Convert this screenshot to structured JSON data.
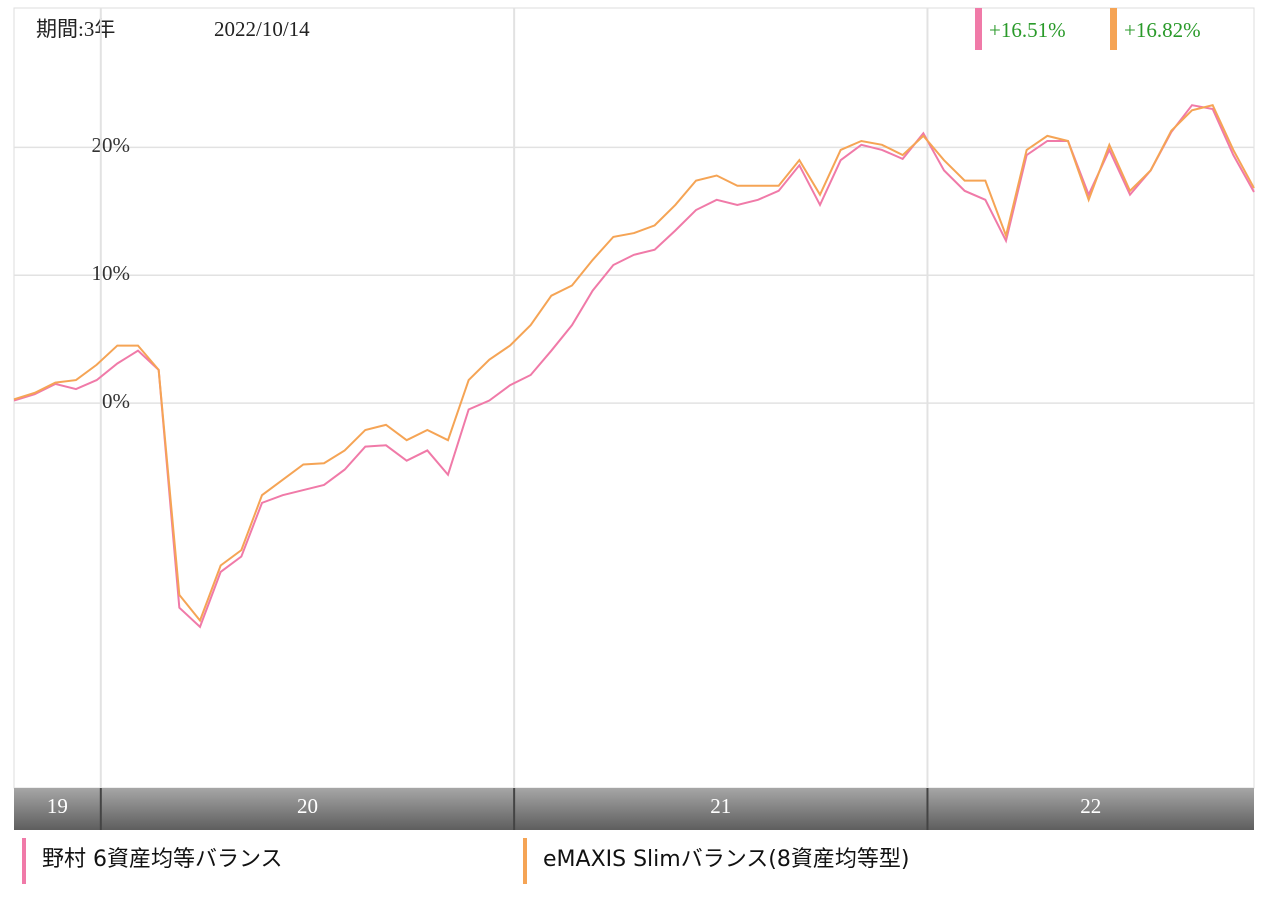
{
  "chart_data": {
    "type": "line",
    "period_label": "期間:3年",
    "date_label": "2022/10/14",
    "x": [
      2019.79,
      2019.84,
      2019.89,
      2019.94,
      2019.99,
      2020.04,
      2020.09,
      2020.14,
      2020.19,
      2020.24,
      2020.29,
      2020.34,
      2020.39,
      2020.44,
      2020.49,
      2020.54,
      2020.59,
      2020.64,
      2020.69,
      2020.74,
      2020.79,
      2020.84,
      2020.89,
      2020.94,
      2020.99,
      2021.04,
      2021.09,
      2021.14,
      2021.19,
      2021.24,
      2021.29,
      2021.34,
      2021.39,
      2021.44,
      2021.49,
      2021.54,
      2021.59,
      2021.64,
      2021.69,
      2021.74,
      2021.79,
      2021.84,
      2021.89,
      2021.94,
      2021.99,
      2022.04,
      2022.09,
      2022.14,
      2022.19,
      2022.24,
      2022.29,
      2022.34,
      2022.39,
      2022.44,
      2022.49,
      2022.54,
      2022.59,
      2022.64,
      2022.69,
      2022.74,
      2022.79
    ],
    "series": [
      {
        "name": "野村 6資産均等バランス",
        "color": "#f07aa8",
        "change_label": "+16.51%",
        "values": [
          0.2,
          0.7,
          1.5,
          1.1,
          1.8,
          3.1,
          4.1,
          2.6,
          -16,
          -17.5,
          -13.2,
          -12,
          -7.8,
          -7.2,
          -6.8,
          -6.4,
          -5.2,
          -3.4,
          -3.3,
          -4.5,
          -3.7,
          -5.6,
          -0.5,
          0.2,
          1.4,
          2.2,
          4.1,
          6.1,
          8.8,
          10.8,
          11.6,
          12,
          13.5,
          15.1,
          15.9,
          15.5,
          15.9,
          16.6,
          18.6,
          15.5,
          19,
          20.2,
          19.8,
          19.1,
          21.1,
          18.2,
          16.6,
          15.9,
          12.7,
          19.4,
          20.5,
          20.5,
          16.3,
          19.8,
          16.3,
          18.2,
          21.2,
          23.3,
          23,
          19.4,
          16.51
        ]
      },
      {
        "name": "eMAXIS Slimバランス(8資産均等型)",
        "color": "#f5a455",
        "change_label": "+16.82%",
        "values": [
          0.3,
          0.8,
          1.6,
          1.8,
          3,
          4.5,
          4.5,
          2.6,
          -15,
          -17,
          -12.7,
          -11.5,
          -7.2,
          -6,
          -4.8,
          -4.7,
          -3.7,
          -2.1,
          -1.7,
          -2.9,
          -2.1,
          -2.9,
          1.8,
          3.4,
          4.5,
          6.1,
          8.4,
          9.2,
          11.2,
          13,
          13.3,
          13.9,
          15.5,
          17.4,
          17.8,
          17,
          17,
          17,
          19,
          16.3,
          19.8,
          20.5,
          20.2,
          19.4,
          20.9,
          19,
          17.4,
          17.4,
          13.1,
          19.8,
          20.9,
          20.5,
          15.9,
          20.2,
          16.6,
          18.2,
          21.3,
          22.9,
          23.3,
          19.8,
          16.82
        ]
      }
    ],
    "xlim": [
      2019.79,
      2022.79
    ],
    "xticks": [
      2020,
      2021,
      2022
    ],
    "year_labels": [
      "19",
      "20",
      "21",
      "22"
    ],
    "ylim": [
      -30.1,
      30.9
    ],
    "yticks": [
      {
        "value": 0,
        "label": "0%"
      },
      {
        "value": 10,
        "label": "10%"
      },
      {
        "value": 20,
        "label": "20%"
      }
    ],
    "grid": true
  }
}
